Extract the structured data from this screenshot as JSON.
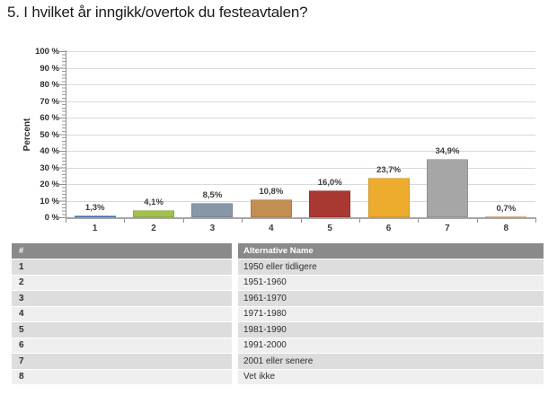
{
  "title": "5. I hvilket år inngikk/overtok du festeavtalen?",
  "chart_data": {
    "type": "bar",
    "title": "5. I hvilket år inngikk/overtok du festeavtalen?",
    "categories": [
      "1",
      "2",
      "3",
      "4",
      "5",
      "6",
      "7",
      "8"
    ],
    "values": [
      1.3,
      4.1,
      8.5,
      10.8,
      16.0,
      23.7,
      34.9,
      0.7
    ],
    "value_labels": [
      "1,3%",
      "4,1%",
      "8,5%",
      "10,8%",
      "16,0%",
      "23,7%",
      "34,9%",
      "0,7%"
    ],
    "bar_colors": [
      "#4D7EBB",
      "#A2C04E",
      "#8897A8",
      "#C28E52",
      "#A93832",
      "#EDAC2D",
      "#A6A6A6",
      "#DE7E35"
    ],
    "ylabel": "Percent",
    "xlabel": "",
    "ylim": [
      0,
      100
    ],
    "ytick_step": 10,
    "ytick_labels": [
      "0 %",
      "10 %",
      "20 %",
      "30 %",
      "40 %",
      "50 %",
      "60 %",
      "70 %",
      "80 %",
      "90 %",
      "100 %"
    ],
    "grid": true,
    "legend": "none"
  },
  "table": {
    "columns": [
      "#",
      "Alternative Name"
    ],
    "rows": [
      {
        "num": "1",
        "name": "1950 eller tidligere"
      },
      {
        "num": "2",
        "name": "1951-1960"
      },
      {
        "num": "3",
        "name": "1961-1970"
      },
      {
        "num": "4",
        "name": "1971-1980"
      },
      {
        "num": "5",
        "name": "1981-1990"
      },
      {
        "num": "6",
        "name": "1991-2000"
      },
      {
        "num": "7",
        "name": "2001 eller senere"
      },
      {
        "num": "8",
        "name": "Vet ikke"
      }
    ]
  },
  "colors": {
    "table_header_bg": "#8A8A8A",
    "row_odd_bg": "#DDDDDD",
    "row_even_bg": "#EFEFEF",
    "gridline": "#D9D9D9",
    "axis": "#8E8E8E",
    "baseline": "#A5A5A5",
    "label_text": "#3C3C3C"
  }
}
